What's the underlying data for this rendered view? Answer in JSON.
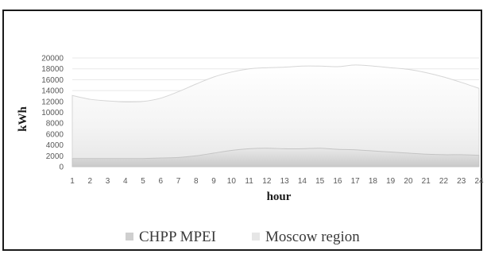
{
  "chart_data": {
    "type": "area",
    "title": "",
    "xlabel": "hour",
    "ylabel": "kWh",
    "x": [
      1,
      2,
      3,
      4,
      5,
      6,
      7,
      8,
      9,
      10,
      11,
      12,
      13,
      14,
      15,
      16,
      17,
      18,
      19,
      20,
      21,
      22,
      23,
      24
    ],
    "ylim": [
      0,
      20000
    ],
    "yticks": [
      0,
      2000,
      4000,
      6000,
      8000,
      10000,
      12000,
      14000,
      16000,
      18000,
      20000
    ],
    "grid": true,
    "legend_position": "bottom",
    "series": [
      {
        "name": "CHPP MPEI",
        "color": "#cfcfcf",
        "values": [
          1500,
          1500,
          1500,
          1500,
          1500,
          1600,
          1700,
          2000,
          2500,
          3000,
          3300,
          3400,
          3300,
          3300,
          3400,
          3200,
          3100,
          2900,
          2700,
          2500,
          2300,
          2200,
          2200,
          2100
        ]
      },
      {
        "name": "Moscow region",
        "color": "#efefef",
        "values": [
          13100,
          12400,
          12100,
          11900,
          12000,
          12600,
          13800,
          15200,
          16500,
          17400,
          18000,
          18200,
          18300,
          18500,
          18500,
          18400,
          18700,
          18500,
          18200,
          17900,
          17300,
          16500,
          15500,
          14400
        ]
      }
    ]
  }
}
